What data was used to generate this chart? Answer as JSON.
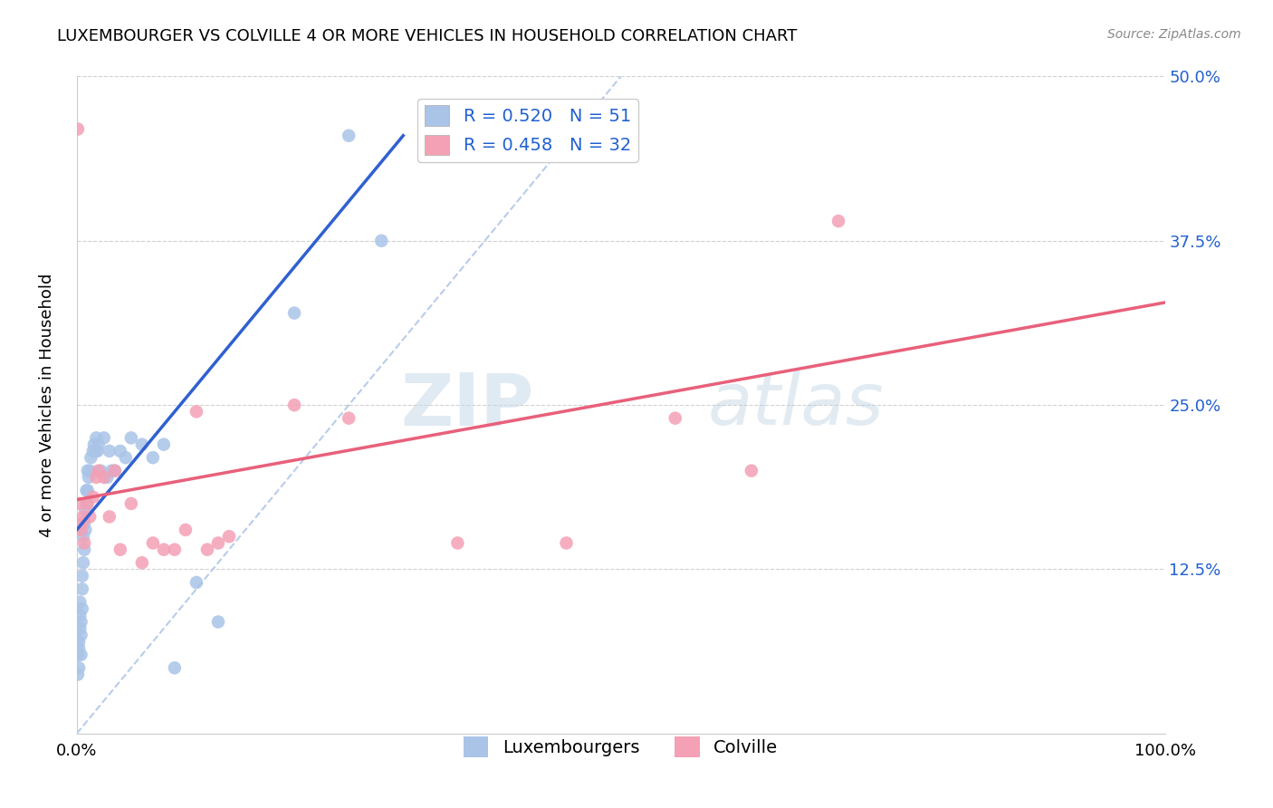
{
  "title": "LUXEMBOURGER VS COLVILLE 4 OR MORE VEHICLES IN HOUSEHOLD CORRELATION CHART",
  "source": "Source: ZipAtlas.com",
  "ylabel": "4 or more Vehicles in Household",
  "xlim": [
    0.0,
    1.0
  ],
  "ylim": [
    0.0,
    0.5
  ],
  "yticks": [
    0.0,
    0.125,
    0.25,
    0.375,
    0.5
  ],
  "yticklabels_right": [
    "",
    "12.5%",
    "25.0%",
    "37.5%",
    "50.0%"
  ],
  "r_blue": 0.52,
  "n_blue": 51,
  "r_pink": 0.458,
  "n_pink": 32,
  "blue_color": "#aac4e8",
  "pink_color": "#f4a0b5",
  "blue_line_color": "#3060d0",
  "pink_line_color": "#e8607a",
  "diag_line_color": "#b0c8e8",
  "legend_r_color": "#2060d0",
  "watermark_zip": "ZIP",
  "watermark_atlas": "atlas",
  "blue_line_x": [
    0.0,
    0.3
  ],
  "blue_line_y": [
    0.155,
    0.455
  ],
  "pink_line_x": [
    0.0,
    1.0
  ],
  "pink_line_y": [
    0.178,
    0.328
  ],
  "diag_line_x": [
    0.0,
    0.5
  ],
  "diag_line_y": [
    0.0,
    0.5
  ],
  "blue_scatter_x": [
    0.001,
    0.001,
    0.002,
    0.002,
    0.002,
    0.003,
    0.003,
    0.003,
    0.004,
    0.004,
    0.004,
    0.005,
    0.005,
    0.005,
    0.006,
    0.006,
    0.007,
    0.007,
    0.008,
    0.008,
    0.009,
    0.009,
    0.01,
    0.01,
    0.011,
    0.012,
    0.013,
    0.015,
    0.016,
    0.017,
    0.018,
    0.019,
    0.02,
    0.022,
    0.025,
    0.028,
    0.03,
    0.032,
    0.035,
    0.04,
    0.045,
    0.05,
    0.06,
    0.07,
    0.08,
    0.09,
    0.11,
    0.13,
    0.2,
    0.25,
    0.28
  ],
  "blue_scatter_y": [
    0.045,
    0.06,
    0.05,
    0.065,
    0.07,
    0.08,
    0.09,
    0.1,
    0.06,
    0.075,
    0.085,
    0.095,
    0.11,
    0.12,
    0.13,
    0.15,
    0.14,
    0.16,
    0.155,
    0.17,
    0.175,
    0.185,
    0.185,
    0.2,
    0.195,
    0.2,
    0.21,
    0.215,
    0.22,
    0.215,
    0.225,
    0.215,
    0.22,
    0.2,
    0.225,
    0.195,
    0.215,
    0.2,
    0.2,
    0.215,
    0.21,
    0.225,
    0.22,
    0.21,
    0.22,
    0.05,
    0.115,
    0.085,
    0.32,
    0.455,
    0.375
  ],
  "pink_scatter_x": [
    0.001,
    0.003,
    0.004,
    0.005,
    0.006,
    0.007,
    0.01,
    0.012,
    0.015,
    0.018,
    0.02,
    0.025,
    0.03,
    0.035,
    0.04,
    0.05,
    0.06,
    0.07,
    0.08,
    0.09,
    0.1,
    0.11,
    0.12,
    0.13,
    0.14,
    0.2,
    0.25,
    0.35,
    0.45,
    0.55,
    0.62,
    0.7
  ],
  "pink_scatter_y": [
    0.46,
    0.175,
    0.155,
    0.16,
    0.165,
    0.145,
    0.175,
    0.165,
    0.18,
    0.195,
    0.2,
    0.195,
    0.165,
    0.2,
    0.14,
    0.175,
    0.13,
    0.145,
    0.14,
    0.14,
    0.155,
    0.245,
    0.14,
    0.145,
    0.15,
    0.25,
    0.24,
    0.145,
    0.145,
    0.24,
    0.2,
    0.39
  ]
}
